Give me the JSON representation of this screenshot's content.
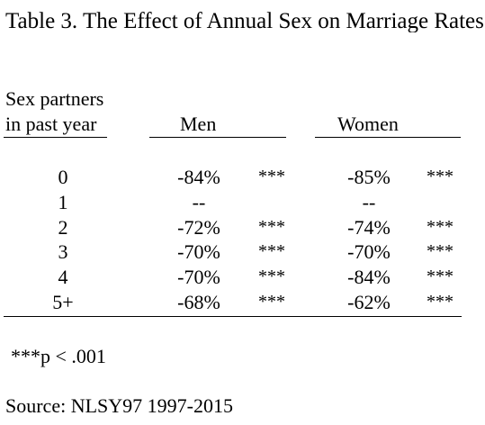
{
  "title": "Table 3. The Effect of Annual Sex on Marriage Rates",
  "row_header": {
    "line1": "Sex partners",
    "line2": "in past year"
  },
  "col_headers": {
    "men": "Men",
    "women": "Women"
  },
  "rows": [
    {
      "label": "0",
      "men": "-84%",
      "men_sig": "***",
      "women": "-85%",
      "women_sig": "***"
    },
    {
      "label": "1",
      "men": "--",
      "men_sig": "",
      "women": "--",
      "women_sig": ""
    },
    {
      "label": "2",
      "men": "-72%",
      "men_sig": "***",
      "women": "-74%",
      "women_sig": "***"
    },
    {
      "label": "3",
      "men": "-70%",
      "men_sig": "***",
      "women": "-70%",
      "women_sig": "***"
    },
    {
      "label": "4",
      "men": "-70%",
      "men_sig": "***",
      "women": "-84%",
      "women_sig": "***"
    },
    {
      "label": "5+",
      "men": "-68%",
      "men_sig": "***",
      "women": "-62%",
      "women_sig": "***"
    }
  ],
  "footnote": "***p < .001",
  "source": "Source: NLSY97 1997-2015"
}
